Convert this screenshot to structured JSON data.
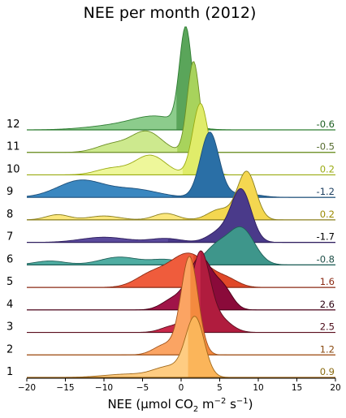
{
  "chart_data": {
    "type": "ridgeline",
    "title": "NEE per month (2012)",
    "xlabel": "NEE (µmol CO₂ m⁻² s⁻¹)",
    "xlabel_parts": {
      "main": "NEE (µmol CO",
      "sub": "2",
      "mid": " m",
      "sup1": "−2",
      "mid2": " s",
      "sup2": "−1",
      "end": ")"
    },
    "xlim": [
      -20,
      20
    ],
    "xticks": [
      -20,
      -15,
      -10,
      -5,
      0,
      5,
      10,
      15,
      20
    ],
    "xtick_labels": [
      "−20",
      "−15",
      "−10",
      "−5",
      "0",
      "5",
      "10",
      "15",
      "20"
    ],
    "grid": false,
    "months": [
      {
        "label": "12",
        "median": -0.6,
        "median_label": "-0.6",
        "color": "#8ccc8c",
        "dark": "#5aa55a",
        "line": "#2e7d32",
        "text_color": "#1b5e20",
        "components": [
          [
            0.6,
            0.8,
            7.5
          ],
          [
            -3,
            3,
            0.9
          ],
          [
            -8,
            4,
            0.35
          ]
        ]
      },
      {
        "label": "11",
        "median": -0.5,
        "median_label": "-0.5",
        "color": "#cde98e",
        "dark": "#a8d35c",
        "line": "#6b8e23",
        "text_color": "#556b2f",
        "components": [
          [
            1.6,
            0.8,
            7
          ],
          [
            -4.5,
            2,
            1.6
          ],
          [
            -9,
            2,
            0.6
          ]
        ]
      },
      {
        "label": "10",
        "median": 0.2,
        "median_label": "0.2",
        "color": "#eef79a",
        "dark": "#e0ec6a",
        "line": "#9aab12",
        "text_color": "#9aab12",
        "components": [
          [
            2.5,
            1,
            5.5
          ],
          [
            -4,
            2,
            1.5
          ],
          [
            -9,
            2,
            0.5
          ]
        ]
      },
      {
        "label": "9",
        "median": -1.2,
        "median_label": "-1.2",
        "color": "#3a87c0",
        "dark": "#2a6fa6",
        "line": "#1d4f7a",
        "text_color": "#1d3f60",
        "components": [
          [
            3.7,
            1.2,
            5
          ],
          [
            -13,
            3,
            1.3
          ],
          [
            -6,
            3,
            0.6
          ],
          [
            8,
            2,
            0.3
          ]
        ]
      },
      {
        "label": "8",
        "median": 0.2,
        "median_label": "0.2",
        "color": "#fbe77d",
        "dark": "#f4d750",
        "line": "#8a7f1c",
        "text_color": "#9a8a00",
        "components": [
          [
            8.5,
            1.2,
            3.7
          ],
          [
            5,
            1.5,
            0.8
          ],
          [
            -16,
            1.5,
            0.4
          ],
          [
            -2,
            1.5,
            0.5
          ],
          [
            -10,
            2,
            0.3
          ]
        ]
      },
      {
        "label": "7",
        "median": -1.7,
        "median_label": "-1.7",
        "color": "#5a4a9c",
        "dark": "#4a3a8a",
        "line": "#2f1f5f",
        "text_color": "#000000",
        "components": [
          [
            7.8,
            1.3,
            4
          ],
          [
            5,
            1.5,
            0.8
          ],
          [
            -10,
            3,
            0.4
          ],
          [
            -2,
            2,
            0.3
          ]
        ]
      },
      {
        "label": "6",
        "median": -0.8,
        "median_label": "-0.8",
        "color": "#4fada2",
        "dark": "#3e968b",
        "line": "#1f5f58",
        "text_color": "#1f4f48",
        "components": [
          [
            7.8,
            1.7,
            2.8
          ],
          [
            4.5,
            1.5,
            1.3
          ],
          [
            -8,
            2.5,
            0.6
          ],
          [
            -17,
            2,
            0.3
          ],
          [
            -2,
            2,
            0.4
          ]
        ]
      },
      {
        "label": "5",
        "median": 1.6,
        "median_label": "1.6",
        "color": "#ef5c3c",
        "dark": "#e04828",
        "line": "#8b2a14",
        "text_color": "#8b2a14",
        "components": [
          [
            1,
            2.5,
            2.6
          ],
          [
            6,
            1.5,
            0.5
          ],
          [
            -4,
            2,
            0.9
          ]
        ]
      },
      {
        "label": "4",
        "median": 2.6,
        "median_label": "2.6",
        "color": "#a01448",
        "dark": "#8a0a3a",
        "line": "#4a0018",
        "text_color": "#2a0010",
        "components": [
          [
            2.5,
            1.5,
            4
          ],
          [
            5.5,
            1.2,
            1.5
          ],
          [
            -1,
            1.5,
            0.8
          ]
        ]
      },
      {
        "label": "3",
        "median": 2.5,
        "median_label": "2.5",
        "color": "#c8284a",
        "dark": "#b01c3e",
        "line": "#5a0e1e",
        "text_color": "#4a0a18",
        "components": [
          [
            2.5,
            1.2,
            6
          ],
          [
            5,
            1.5,
            1
          ],
          [
            -1,
            1.5,
            0.5
          ]
        ]
      },
      {
        "label": "2",
        "median": 1.2,
        "median_label": "1.2",
        "color": "#fba463",
        "dark": "#f48a3f",
        "line": "#a0521a",
        "text_color": "#8a4a10",
        "components": [
          [
            1.1,
            1.1,
            7.5
          ],
          [
            -2,
            1.5,
            0.8
          ]
        ]
      },
      {
        "label": "1",
        "median": 0.9,
        "median_label": "0.9",
        "color": "#fecc82",
        "dark": "#fbb55a",
        "line": "#a0681a",
        "text_color": "#8a6a10",
        "components": [
          [
            1.8,
            1.2,
            4.5
          ],
          [
            -1.5,
            2,
            0.8
          ],
          [
            -7,
            3,
            0.25
          ]
        ]
      }
    ]
  }
}
